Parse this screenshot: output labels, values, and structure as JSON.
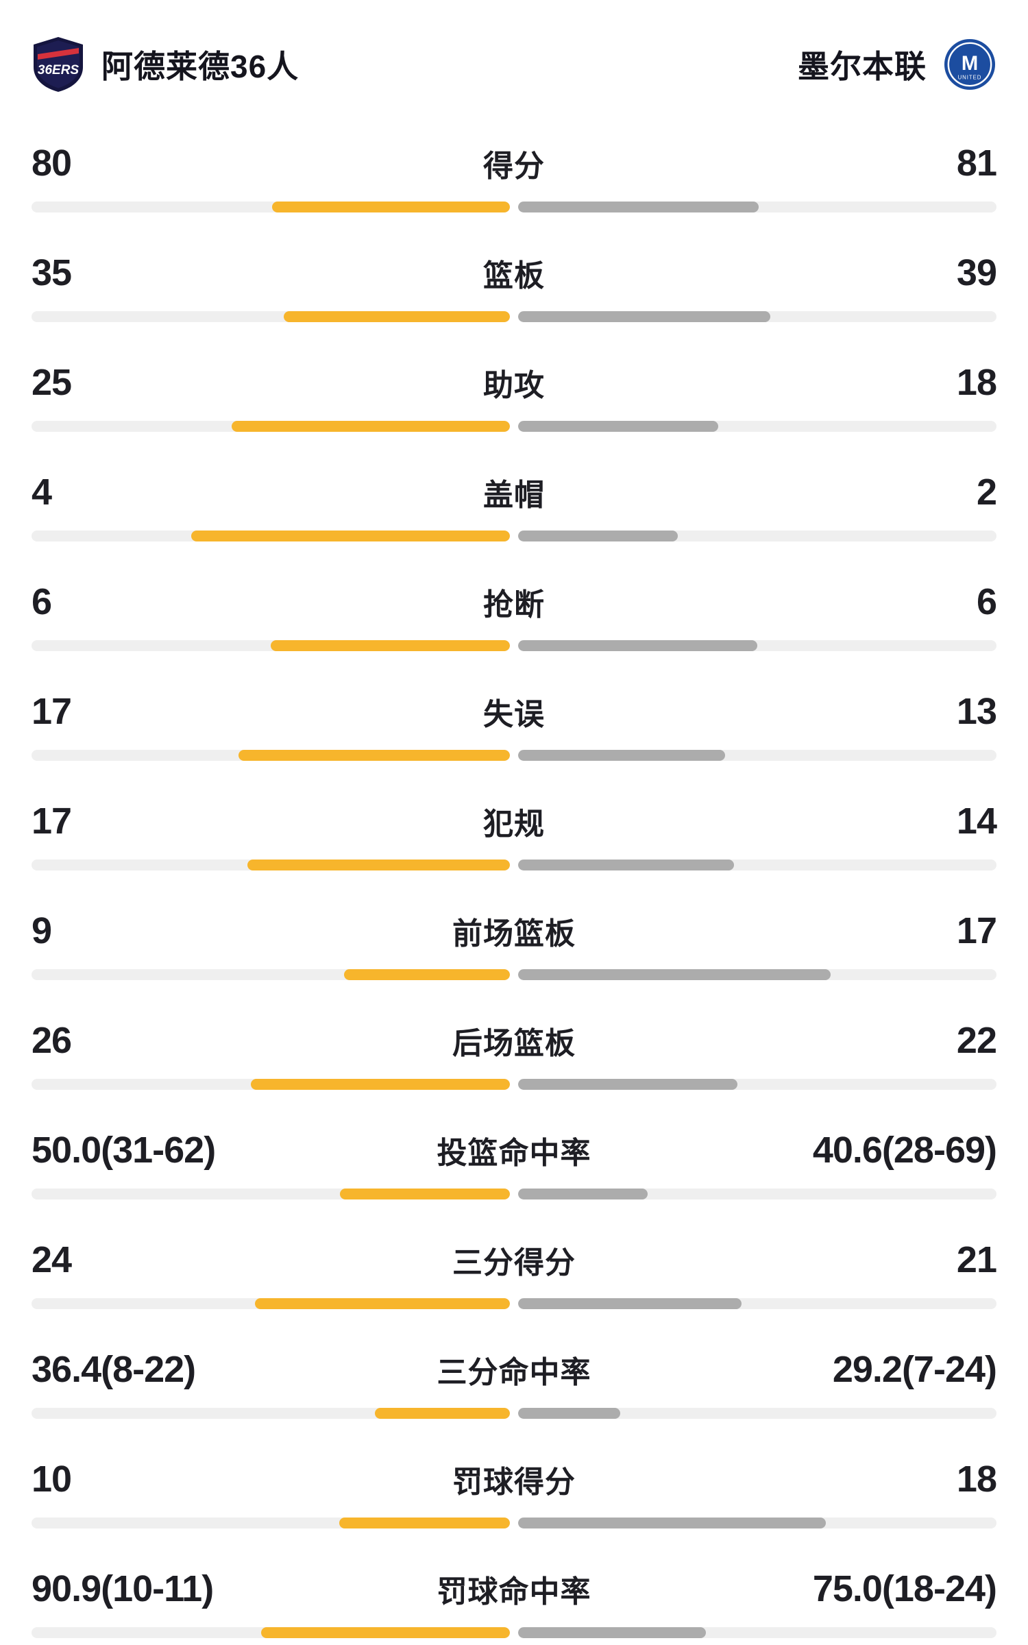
{
  "header": {
    "home": {
      "name": "阿德莱德36人"
    },
    "away": {
      "name": "墨尔本联"
    }
  },
  "logos": {
    "home": {
      "icon": "adelaide-36ers-shield",
      "text": "36ERS"
    },
    "away": {
      "icon": "melbourne-united-circle",
      "letter": "M",
      "text": "UNITED"
    }
  },
  "colors": {
    "home_bar": "#F7B52C",
    "away_bar": "#ACACAC",
    "bar_track": "#EFEFEF",
    "text": "#1E1E24",
    "adelaide_navy": "#15153F",
    "melbourne_blue": "#1C4DA0"
  },
  "chart_data": {
    "type": "bar",
    "layout": "mirrored horizontal comparison; home (yellow) bars grow leftward from center, away (grey) bars grow rightward; light grey full-width tracks behind",
    "teams": [
      "阿德莱德36人",
      "墨尔本联"
    ],
    "legend_position": "header",
    "rows": [
      {
        "label": "得分",
        "left": "80",
        "right": "81",
        "left_value": 80,
        "right_value": 81,
        "percent": false
      },
      {
        "label": "篮板",
        "left": "35",
        "right": "39",
        "left_value": 35,
        "right_value": 39,
        "percent": false
      },
      {
        "label": "助攻",
        "left": "25",
        "right": "18",
        "left_value": 25,
        "right_value": 18,
        "percent": false
      },
      {
        "label": "盖帽",
        "left": "4",
        "right": "2",
        "left_value": 4,
        "right_value": 2,
        "percent": false
      },
      {
        "label": "抢断",
        "left": "6",
        "right": "6",
        "left_value": 6,
        "right_value": 6,
        "percent": false
      },
      {
        "label": "失误",
        "left": "17",
        "right": "13",
        "left_value": 17,
        "right_value": 13,
        "percent": false
      },
      {
        "label": "犯规",
        "left": "17",
        "right": "14",
        "left_value": 17,
        "right_value": 14,
        "percent": false
      },
      {
        "label": "前场篮板",
        "left": "9",
        "right": "17",
        "left_value": 9,
        "right_value": 17,
        "percent": false
      },
      {
        "label": "后场篮板",
        "left": "26",
        "right": "22",
        "left_value": 26,
        "right_value": 22,
        "percent": false
      },
      {
        "label": "投篮命中率",
        "left": "50.0(31-62)",
        "right": "40.6(28-69)",
        "left_value": 50.0,
        "right_value": 40.6,
        "percent": true
      },
      {
        "label": "三分得分",
        "left": "24",
        "right": "21",
        "left_value": 24,
        "right_value": 21,
        "percent": false
      },
      {
        "label": "三分命中率",
        "left": "36.4(8-22)",
        "right": "29.2(7-24)",
        "left_value": 36.4,
        "right_value": 29.2,
        "percent": true
      },
      {
        "label": "罚球得分",
        "left": "10",
        "right": "18",
        "left_value": 10,
        "right_value": 18,
        "percent": false
      },
      {
        "label": "罚球命中率",
        "left": "90.9(10-11)",
        "right": "75.0(18-24)",
        "left_value": 90.9,
        "right_value": 75.0,
        "percent": true
      }
    ]
  }
}
